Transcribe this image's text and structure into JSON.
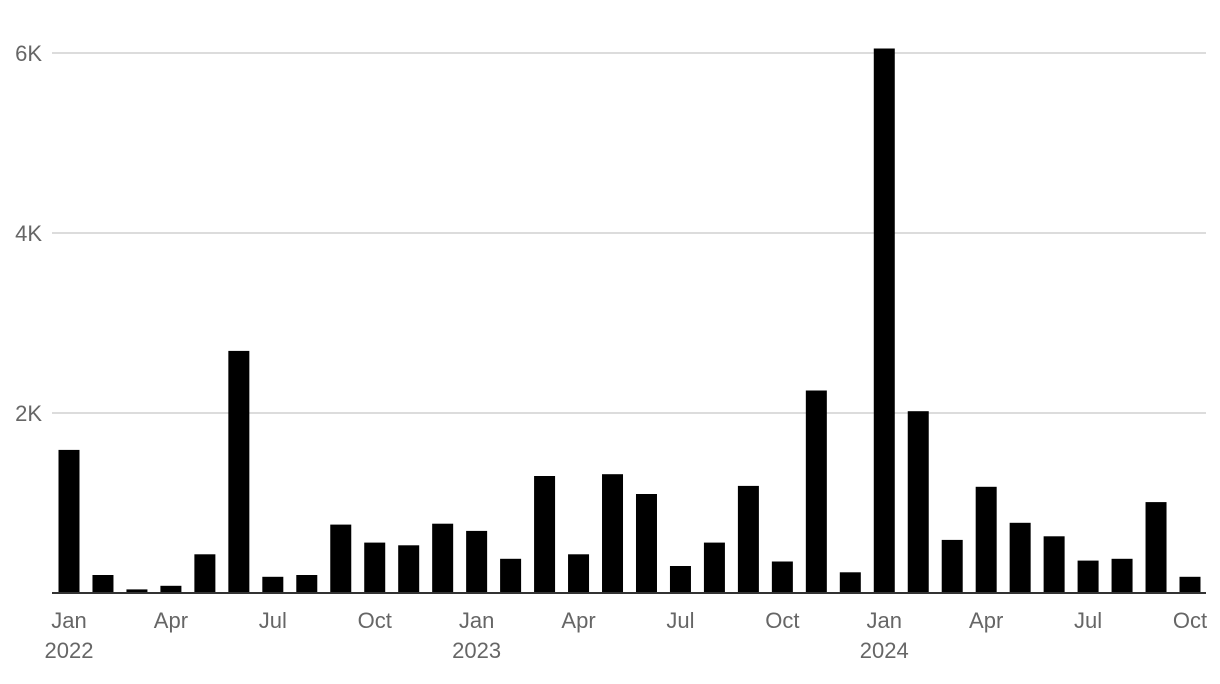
{
  "chart_data": {
    "type": "bar",
    "title": "",
    "xlabel": "",
    "ylabel": "",
    "ylim": [
      0,
      6000
    ],
    "grid": true,
    "bar_color": "#000000",
    "gridline_color": "#d0d0d0",
    "baseline_color": "#333333",
    "label_color": "#666666",
    "y_ticks": [
      {
        "value": 2000,
        "label": "2K"
      },
      {
        "value": 4000,
        "label": "4K"
      },
      {
        "value": 6000,
        "label": "6K"
      }
    ],
    "x_ticks": [
      {
        "index": 0,
        "label": "Jan",
        "year": "2022"
      },
      {
        "index": 3,
        "label": "Apr"
      },
      {
        "index": 6,
        "label": "Jul"
      },
      {
        "index": 9,
        "label": "Oct"
      },
      {
        "index": 12,
        "label": "Jan",
        "year": "2023"
      },
      {
        "index": 15,
        "label": "Apr"
      },
      {
        "index": 18,
        "label": "Jul"
      },
      {
        "index": 21,
        "label": "Oct"
      },
      {
        "index": 24,
        "label": "Jan",
        "year": "2024"
      },
      {
        "index": 27,
        "label": "Apr"
      },
      {
        "index": 30,
        "label": "Jul"
      },
      {
        "index": 33,
        "label": "Oct"
      }
    ],
    "categories": [
      "2022-01",
      "2022-02",
      "2022-03",
      "2022-04",
      "2022-05",
      "2022-06",
      "2022-07",
      "2022-08",
      "2022-09",
      "2022-10",
      "2022-11",
      "2022-12",
      "2023-01",
      "2023-02",
      "2023-03",
      "2023-04",
      "2023-05",
      "2023-06",
      "2023-07",
      "2023-08",
      "2023-09",
      "2023-10",
      "2023-11",
      "2023-12",
      "2024-01",
      "2024-02",
      "2024-03",
      "2024-04",
      "2024-05",
      "2024-06",
      "2024-07",
      "2024-08",
      "2024-09",
      "2024-10"
    ],
    "values": [
      1590,
      200,
      40,
      80,
      430,
      2690,
      180,
      200,
      760,
      560,
      530,
      770,
      690,
      380,
      1300,
      430,
      1320,
      1100,
      300,
      560,
      1190,
      350,
      2250,
      230,
      6050,
      2020,
      590,
      1180,
      780,
      630,
      360,
      380,
      1010,
      180
    ]
  }
}
